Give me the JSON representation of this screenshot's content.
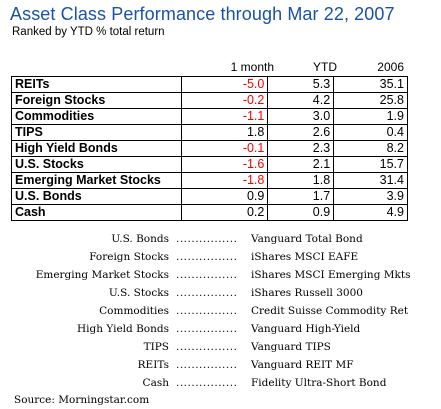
{
  "title": "Asset Class Performance through Mar 22, 2007",
  "subtitle": "Ranked by YTD % total return",
  "columns": [
    "1 month",
    "YTD",
    "2006"
  ],
  "rows": [
    {
      "name": "REITs",
      "month": "-5.0",
      "ytd": "5.3",
      "y2006": "35.1",
      "month_negative": true
    },
    {
      "name": "Foreign Stocks",
      "month": "-0.2",
      "ytd": "4.2",
      "y2006": "25.8",
      "month_negative": true
    },
    {
      "name": "Commodities",
      "month": "-1.1",
      "ytd": "3.0",
      "y2006": "1.9",
      "month_negative": true
    },
    {
      "name": "TIPS",
      "month": "1.8",
      "ytd": "2.6",
      "y2006": "0.4",
      "month_negative": false
    },
    {
      "name": "High Yield Bonds",
      "month": "-0.1",
      "ytd": "2.3",
      "y2006": "8.2",
      "month_negative": true
    },
    {
      "name": "U.S. Stocks",
      "month": "-1.6",
      "ytd": "2.1",
      "y2006": "15.7",
      "month_negative": true
    },
    {
      "name": "Emerging Market Stocks",
      "month": "-1.8",
      "ytd": "1.8",
      "y2006": "31.4",
      "month_negative": true
    },
    {
      "name": "U.S. Bonds",
      "month": "0.9",
      "ytd": "1.7",
      "y2006": "3.9",
      "month_negative": false
    },
    {
      "name": "Cash",
      "month": "0.2",
      "ytd": "0.9",
      "y2006": "4.9",
      "month_negative": false
    }
  ],
  "funds": [
    {
      "asset": "U.S. Bonds",
      "dots": "................",
      "fund": "Vanguard Total Bond"
    },
    {
      "asset": "Foreign Stocks",
      "dots": "................",
      "fund": "iShares MSCI EAFE"
    },
    {
      "asset": "Emerging Market Stocks",
      "dots": "................",
      "fund": "iShares MSCI Emerging Mkts"
    },
    {
      "asset": "U.S. Stocks",
      "dots": "................",
      "fund": "iShares Russell 3000"
    },
    {
      "asset": "Commodities",
      "dots": "................",
      "fund": "Credit Suisse Commodity Ret"
    },
    {
      "asset": "High Yield Bonds",
      "dots": "................",
      "fund": "Vanguard High-Yield"
    },
    {
      "asset": "TIPS",
      "dots": "................",
      "fund": "Vanguard TIPS"
    },
    {
      "asset": "REITs",
      "dots": "................",
      "fund": "Vanguard REIT MF"
    },
    {
      "asset": "Cash",
      "dots": "................",
      "fund": "Fidelity Ultra-Short Bond"
    }
  ],
  "source": "Source:  Morningstar.com",
  "colors": {
    "title": "#1a52a8",
    "negative": "#ff0000",
    "positive": "#000000"
  }
}
